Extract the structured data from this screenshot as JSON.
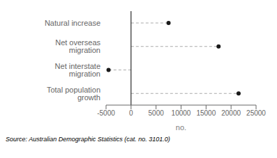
{
  "chart_data": {
    "type": "dot",
    "orientation": "horizontal",
    "categories": [
      "Natural increase",
      "Net overseas migration",
      "Net interstate migration",
      "Total population growth"
    ],
    "values": [
      7500,
      17500,
      -4500,
      21500
    ],
    "xlim": [
      -5000,
      25000
    ],
    "xticks": [
      -5000,
      0,
      5000,
      10000,
      15000,
      20000,
      25000
    ],
    "xlabel": "no.",
    "color": "#1a1a1a",
    "line_style": "dashed",
    "annotation": "Source: Australian Demographic Statistics (cat. no. 3101.0)"
  }
}
